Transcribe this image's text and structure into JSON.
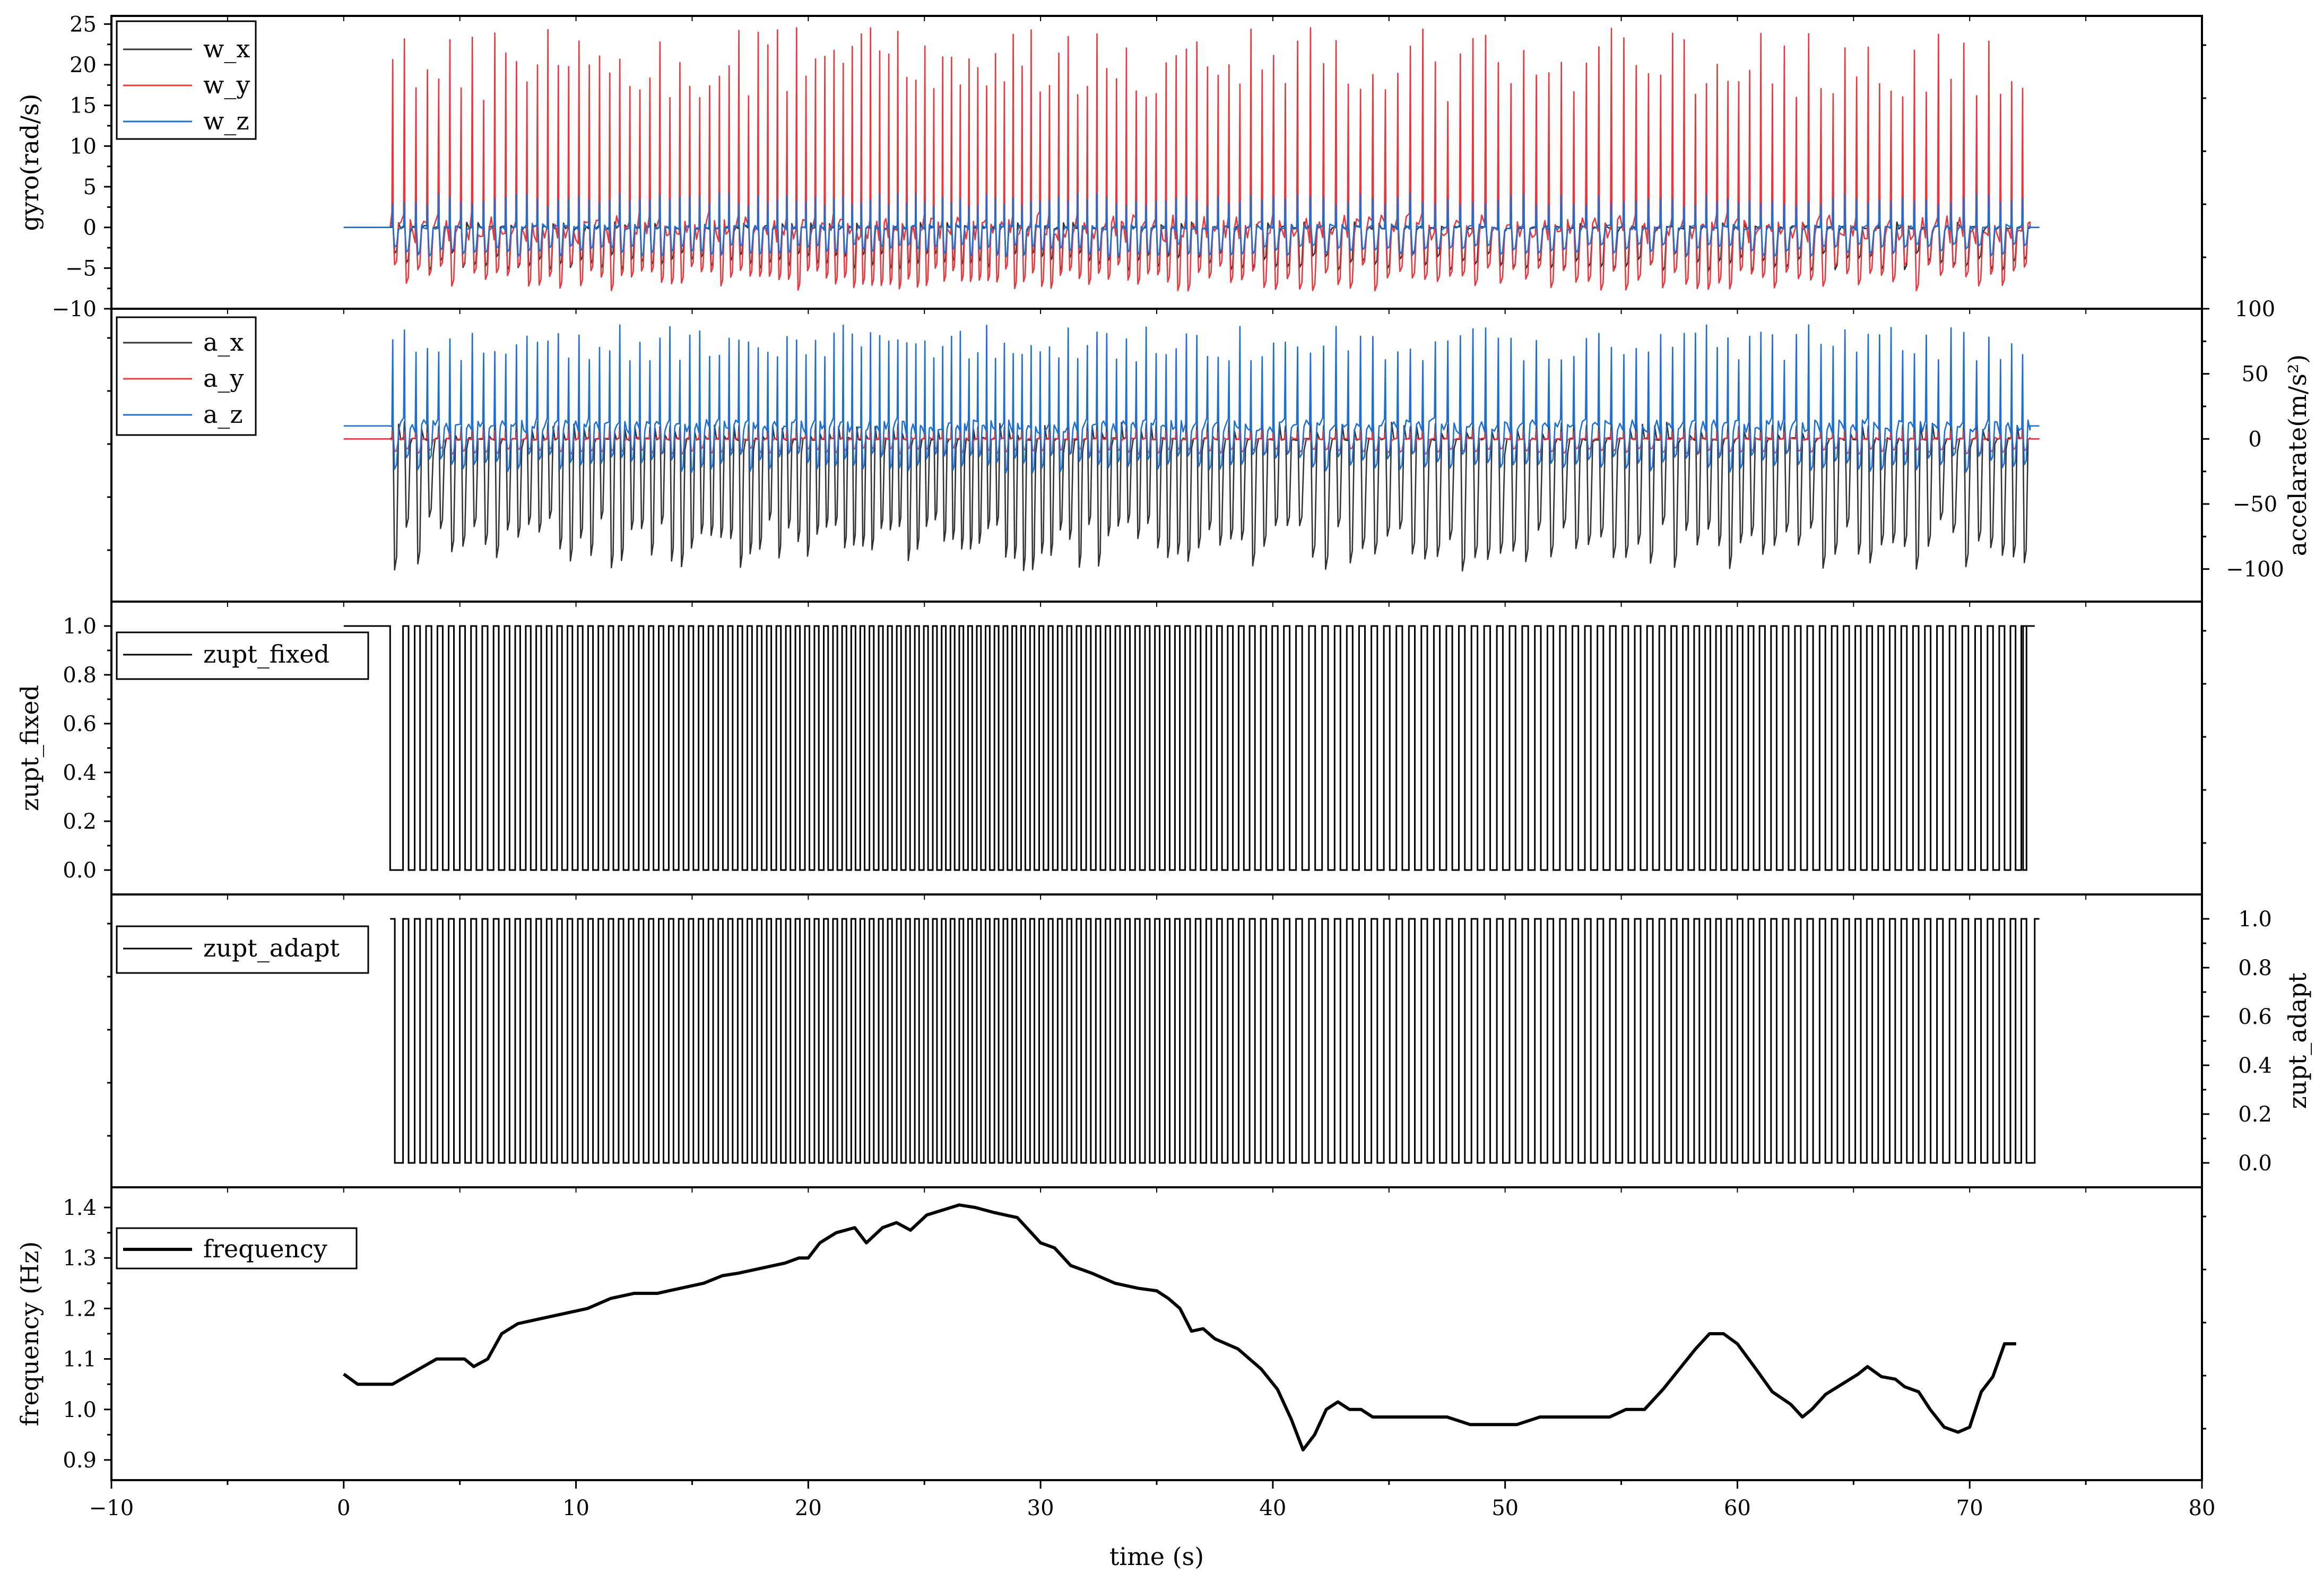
{
  "chart_data": {
    "type": "line",
    "shared_x": {
      "label": "time (s)",
      "range": [
        -10,
        80
      ],
      "ticks": [
        -10,
        0,
        10,
        20,
        30,
        40,
        50,
        60,
        70,
        80
      ],
      "tick_labels": [
        "−10",
        "0",
        "10",
        "20",
        "30",
        "40",
        "50",
        "60",
        "70",
        "80"
      ]
    },
    "panels": [
      {
        "id": "gyro",
        "ylabel": "gyro(rad/s)",
        "yaxis_side": "left",
        "ylim": [
          -10,
          26
        ],
        "yticks": [
          -10,
          -5,
          0,
          5,
          10,
          15,
          20,
          25
        ],
        "ytick_labels": [
          "−10",
          "−5",
          "0",
          "5",
          "10",
          "15",
          "20",
          "25"
        ],
        "legend_position": "top-left",
        "active_range": [
          0,
          73
        ],
        "stance_level": 0,
        "series": [
          {
            "name": "w_x",
            "color": "#333333",
            "kind": "gait",
            "ampUp": 2.5,
            "ampDown": 4.5
          },
          {
            "name": "w_y",
            "color": "#e8383d",
            "kind": "gait",
            "ampUp": 20.5,
            "ampDown": 6.5
          },
          {
            "name": "w_z",
            "color": "#1f6fd1",
            "kind": "gait",
            "ampUp": 3.5,
            "ampDown": 3.0
          }
        ]
      },
      {
        "id": "accel",
        "ylabel": "accelarate(m/s²)",
        "yaxis_side": "right",
        "ylim": [
          -125,
          100
        ],
        "yticks": [
          -100,
          -50,
          0,
          50,
          100
        ],
        "ytick_labels": [
          "−100",
          "−50",
          "0",
          "50",
          "100"
        ],
        "legend_position": "top-left",
        "active_range": [
          0,
          73
        ],
        "series": [
          {
            "name": "a_x",
            "color": "#333333",
            "kind": "gait",
            "base": 0,
            "ampUp": 12,
            "ampDown": 85
          },
          {
            "name": "a_y",
            "color": "#e8383d",
            "kind": "gait",
            "base": 0,
            "ampUp": 6,
            "ampDown": 10
          },
          {
            "name": "a_z",
            "color": "#1f6fd1",
            "kind": "gait",
            "base": 10,
            "ampUp": 65,
            "ampDown": 30
          }
        ]
      },
      {
        "id": "zupt_fixed",
        "ylabel": "zupt_fixed",
        "yaxis_side": "left",
        "ylim": [
          -0.1,
          1.1
        ],
        "yticks": [
          0.0,
          0.2,
          0.4,
          0.6,
          0.8,
          1.0
        ],
        "ytick_labels": [
          "0.0",
          "0.2",
          "0.4",
          "0.6",
          "0.8",
          "1.0"
        ],
        "legend_position": "top-left",
        "active_range": [
          0,
          72.8
        ],
        "series": [
          {
            "name": "zupt_fixed",
            "color": "#000000",
            "kind": "binary",
            "first_drop": 2.0,
            "last_rise": 72.3
          }
        ]
      },
      {
        "id": "zupt_adapt",
        "ylabel": "zupt_adapt",
        "yaxis_side": "right",
        "ylim": [
          -0.1,
          1.1
        ],
        "yticks": [
          0.0,
          0.2,
          0.4,
          0.6,
          0.8,
          1.0
        ],
        "ytick_labels": [
          "0.0",
          "0.2",
          "0.4",
          "0.6",
          "0.8",
          "1.0"
        ],
        "legend_position": "top-left",
        "active_range": [
          2.0,
          73
        ],
        "series": [
          {
            "name": "zupt_adapt",
            "color": "#000000",
            "kind": "binary",
            "first_drop": 2.2,
            "last_rise": 72.8
          }
        ]
      },
      {
        "id": "frequency",
        "ylabel": "frequency (Hz)",
        "yaxis_side": "left",
        "ylim": [
          0.86,
          1.44
        ],
        "yticks": [
          0.9,
          1.0,
          1.1,
          1.2,
          1.3,
          1.4
        ],
        "ytick_labels": [
          "0.9",
          "1.0",
          "1.1",
          "1.2",
          "1.3",
          "1.4"
        ],
        "legend_position": "top-left",
        "series": [
          {
            "name": "frequency",
            "color": "#000000",
            "kind": "line",
            "x": [
              0,
              0.6,
              2.1,
              4,
              5.2,
              5.6,
              6.2,
              6.8,
              7.5,
              8.5,
              9.5,
              10.5,
              11.5,
              12.5,
              13.5,
              14.5,
              15.5,
              16.3,
              17,
              18,
              19,
              19.6,
              20,
              20.5,
              21.2,
              22,
              22.5,
              23.2,
              23.8,
              24.4,
              25.1,
              25.8,
              26.5,
              27.2,
              28,
              29,
              30,
              30.6,
              31.3,
              32.2,
              33.2,
              34.2,
              35,
              35.5,
              36,
              36.5,
              37,
              37.5,
              38.5,
              39.5,
              40.2,
              40.8,
              41.3,
              41.8,
              42.3,
              42.8,
              43.3,
              43.8,
              44.3,
              44.8,
              45.5,
              46.5,
              47.5,
              48.5,
              49.5,
              50.5,
              51.5,
              52.5,
              53.5,
              54.5,
              55.2,
              56,
              56.8,
              57.5,
              58.2,
              58.8,
              59.4,
              60,
              60.8,
              61.5,
              62.3,
              62.8,
              63.2,
              63.8,
              64.5,
              65.2,
              65.6,
              66.2,
              66.8,
              67.2,
              67.8,
              68.3,
              68.9,
              69.5,
              70,
              70.5,
              71,
              71.5,
              72
            ],
            "y": [
              1.07,
              1.05,
              1.05,
              1.1,
              1.1,
              1.085,
              1.1,
              1.15,
              1.17,
              1.18,
              1.19,
              1.2,
              1.22,
              1.23,
              1.23,
              1.24,
              1.25,
              1.265,
              1.27,
              1.28,
              1.29,
              1.3,
              1.3,
              1.33,
              1.35,
              1.36,
              1.33,
              1.36,
              1.37,
              1.355,
              1.385,
              1.395,
              1.405,
              1.4,
              1.39,
              1.38,
              1.33,
              1.32,
              1.285,
              1.27,
              1.25,
              1.24,
              1.235,
              1.22,
              1.2,
              1.155,
              1.16,
              1.14,
              1.12,
              1.08,
              1.04,
              0.98,
              0.92,
              0.95,
              1.0,
              1.015,
              1.0,
              1.0,
              0.985,
              0.985,
              0.985,
              0.985,
              0.985,
              0.97,
              0.97,
              0.97,
              0.985,
              0.985,
              0.985,
              0.985,
              1.0,
              1.0,
              1.04,
              1.08,
              1.12,
              1.15,
              1.15,
              1.13,
              1.08,
              1.035,
              1.01,
              0.985,
              1.0,
              1.03,
              1.05,
              1.07,
              1.085,
              1.065,
              1.06,
              1.045,
              1.035,
              1.0,
              0.965,
              0.955,
              0.965,
              1.035,
              1.065,
              1.13,
              1.13
            ]
          }
        ]
      }
    ]
  }
}
